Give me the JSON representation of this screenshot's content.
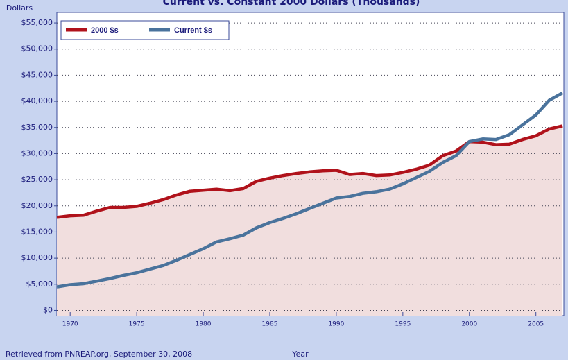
{
  "chart_data": {
    "type": "line",
    "title": "Current vs. Constant 2000 Dollars (Thousands)",
    "y_label": "Dollars",
    "x_label": "Year",
    "note": "Retrieved from PNREAP.org, September 30, 2008",
    "x": [
      1969,
      1970,
      1971,
      1972,
      1973,
      1974,
      1975,
      1976,
      1977,
      1978,
      1979,
      1980,
      1981,
      1982,
      1983,
      1984,
      1985,
      1986,
      1987,
      1988,
      1989,
      1990,
      1991,
      1992,
      1993,
      1994,
      1995,
      1996,
      1997,
      1998,
      1999,
      2000,
      2001,
      2002,
      2003,
      2004,
      2005,
      2006,
      2007
    ],
    "series": [
      {
        "name": "2000 $s",
        "color": "#b0121b",
        "area": true,
        "area_color": "#f1dede",
        "values": [
          17800,
          18100,
          18200,
          19000,
          19700,
          19700,
          19900,
          20500,
          21200,
          22100,
          22800,
          23000,
          23200,
          22900,
          23300,
          24700,
          25300,
          25800,
          26200,
          26500,
          26700,
          26800,
          26000,
          26200,
          25800,
          25900,
          26400,
          27000,
          27800,
          29600,
          30500,
          32300,
          32200,
          31700,
          31800,
          32700,
          33400,
          34700,
          35300
        ]
      },
      {
        "name": "Current $s",
        "color": "#4a739c",
        "area": false,
        "values": [
          4500,
          4900,
          5100,
          5600,
          6100,
          6700,
          7200,
          7900,
          8600,
          9600,
          10700,
          11800,
          13100,
          13700,
          14400,
          15800,
          16800,
          17600,
          18500,
          19500,
          20500,
          21500,
          21800,
          22400,
          22700,
          23200,
          24200,
          25400,
          26600,
          28300,
          29600,
          32300,
          32800,
          32700,
          33600,
          35500,
          37400,
          40200,
          41600
        ]
      }
    ],
    "xlim": [
      1969,
      2007.1
    ],
    "xticks": [
      1970,
      1975,
      1980,
      1985,
      1990,
      1995,
      2000,
      2005
    ],
    "ylim": [
      -1000,
      57000
    ],
    "yticks": [
      {
        "value": 0,
        "label": "$0"
      },
      {
        "value": 5000,
        "label": "$5,000"
      },
      {
        "value": 10000,
        "label": "$10,000"
      },
      {
        "value": 15000,
        "label": "$15,000"
      },
      {
        "value": 20000,
        "label": "$20,000"
      },
      {
        "value": 25000,
        "label": "$25,000"
      },
      {
        "value": 30000,
        "label": "$30,000"
      },
      {
        "value": 35000,
        "label": "$35,000"
      },
      {
        "value": 40000,
        "label": "$40,000"
      },
      {
        "value": 45000,
        "label": "$45,000"
      },
      {
        "value": 50000,
        "label": "$50,000"
      },
      {
        "value": 55000,
        "label": "$55,000"
      }
    ],
    "grid": true,
    "legend": "top-left"
  }
}
